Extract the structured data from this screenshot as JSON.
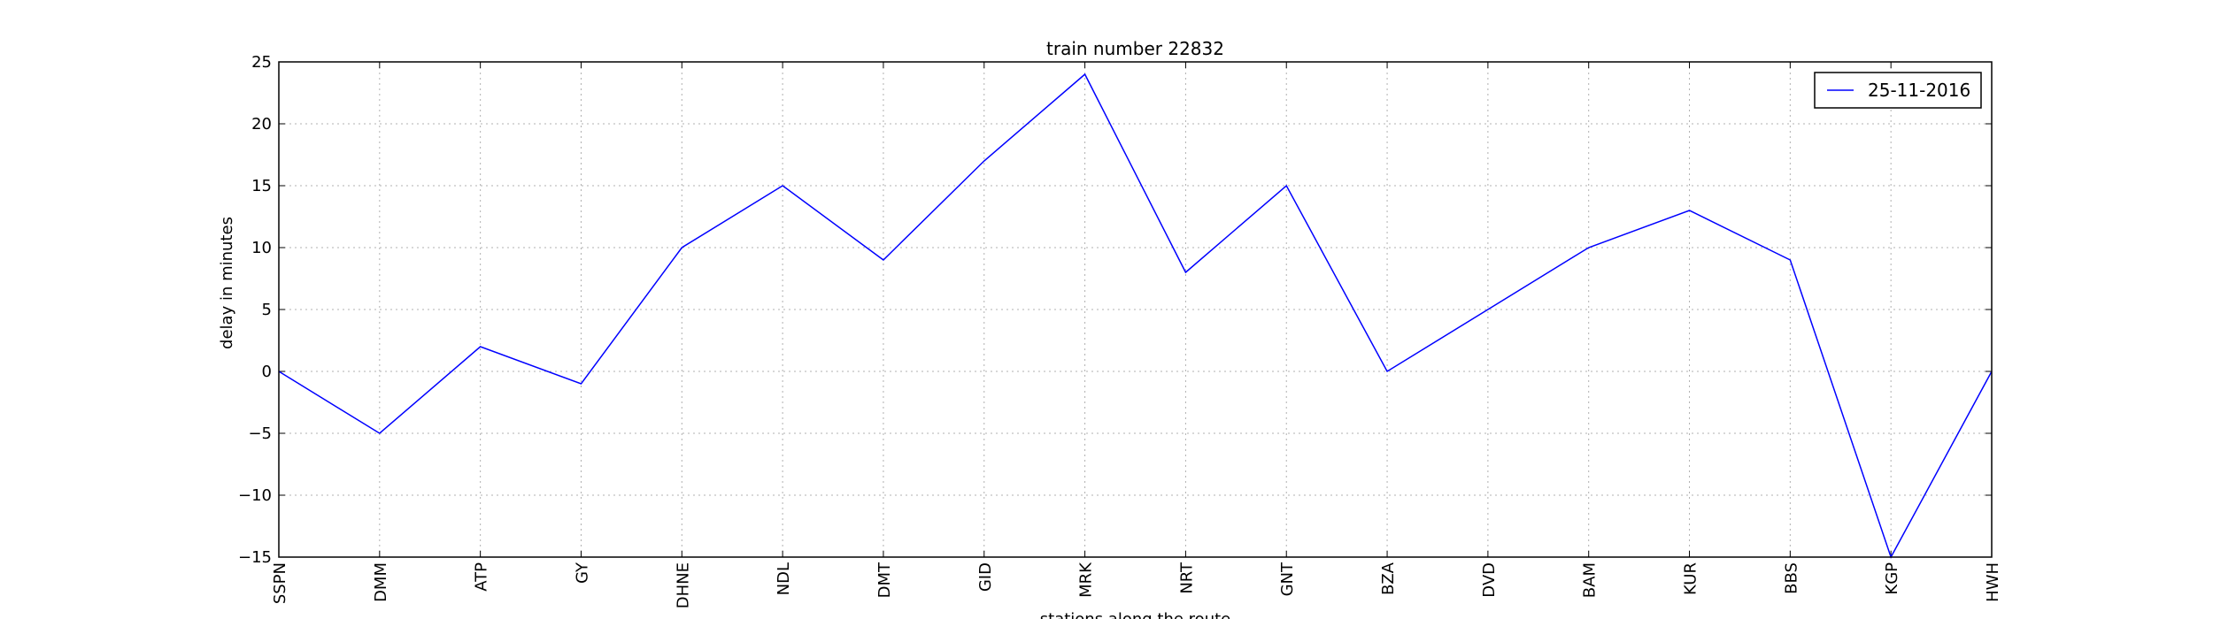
{
  "chart_data": {
    "type": "line",
    "title": "train number 22832",
    "xlabel": "stations along the route",
    "ylabel": "delay in minutes",
    "categories": [
      "SSPN",
      "DMM",
      "ATP",
      "GY",
      "DHNE",
      "NDL",
      "DMT",
      "GID",
      "MRK",
      "NRT",
      "GNT",
      "BZA",
      "DVD",
      "BAM",
      "KUR",
      "BBS",
      "KGP",
      "HWH"
    ],
    "series": [
      {
        "name": "25-11-2016",
        "color": "#0000ff",
        "values": [
          0,
          -5,
          2,
          -1,
          10,
          15,
          9,
          17,
          24,
          8,
          15,
          0,
          5,
          10,
          13,
          9,
          -15,
          0
        ]
      }
    ],
    "ylim": [
      -15,
      25
    ],
    "yticks": [
      -15,
      -10,
      -5,
      0,
      5,
      10,
      15,
      20,
      25
    ],
    "ytick_labels": [
      "−15",
      "−10",
      "−5",
      "0",
      "5",
      "10",
      "15",
      "20",
      "25"
    ],
    "grid": true,
    "legend_position": "top-right"
  }
}
